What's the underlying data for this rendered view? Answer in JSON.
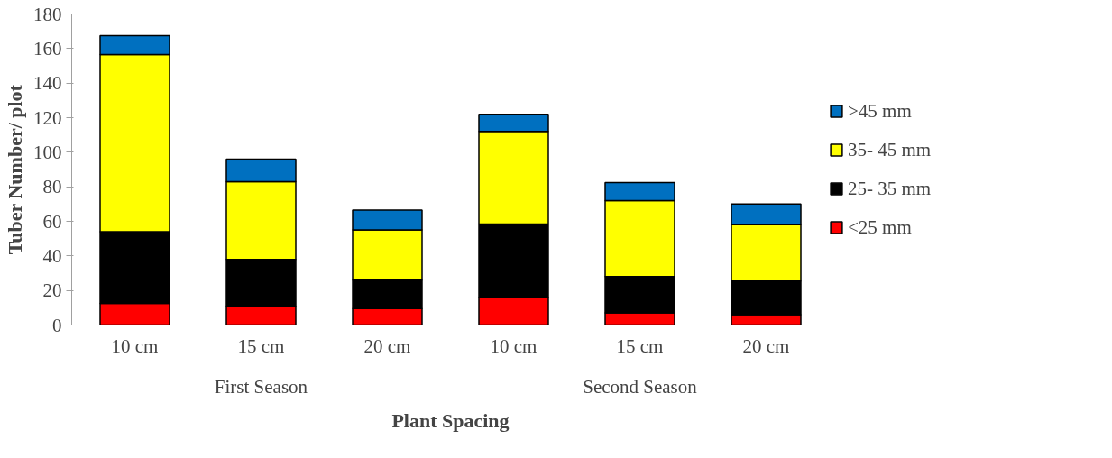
{
  "chart_data": {
    "type": "bar",
    "stacked": true,
    "xlabel": "Plant Spacing",
    "ylabel": "Tuber Number/ plot",
    "categories": [
      "10 cm",
      "15 cm",
      "20 cm",
      "10 cm",
      "15 cm",
      "20 cm"
    ],
    "annotations": [
      "First Season",
      "Second Season"
    ],
    "series": [
      {
        "name": "<25 mm",
        "color": "#ff0000",
        "values": [
          12.5,
          11,
          9.5,
          16,
          7,
          6
        ]
      },
      {
        "name": "25- 35 mm",
        "color": "#000000",
        "values": [
          41.5,
          27,
          16.5,
          42.5,
          21,
          19.5
        ]
      },
      {
        "name": "35- 45 mm",
        "color": "#ffff00",
        "values": [
          102.5,
          45,
          29,
          53.5,
          44,
          32.5
        ]
      },
      {
        "name": ">45 mm",
        "color": "#0070c0",
        "values": [
          11,
          13,
          11.5,
          10,
          10.5,
          12
        ]
      }
    ],
    "ylim": [
      0,
      180
    ],
    "yticks": [
      0,
      20,
      40,
      60,
      80,
      100,
      120,
      140,
      160,
      180
    ],
    "grid": false,
    "legend": "right"
  }
}
